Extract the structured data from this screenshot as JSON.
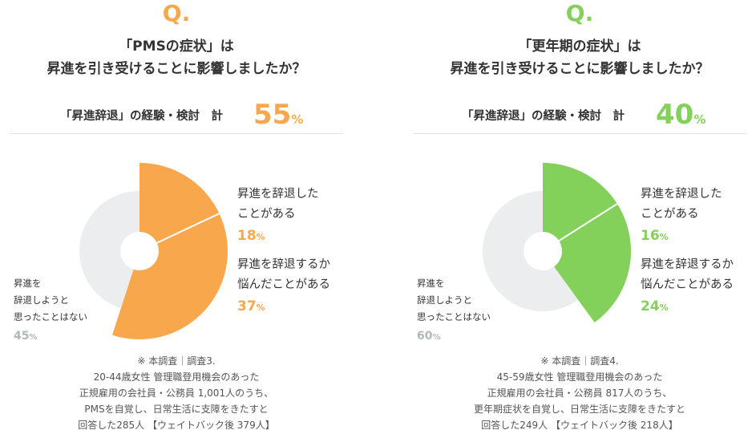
{
  "colors": {
    "pms": "#f9a74c",
    "meno": "#83d05a",
    "grey": "#ecedef",
    "grey_text": "#b0b8bd"
  },
  "panels": [
    {
      "q_mark": "Q.",
      "question_line1": "「PMSの症状」は",
      "question_line2": "昇進を引き受けることに影響しましたか？",
      "summary_label": "「昇進辞退」の経験・検討　計",
      "summary_value": "55",
      "summary_pct": "%",
      "label_a_line1": "昇進を辞退した",
      "label_a_line2": "ことがある",
      "label_a_value": "18",
      "label_b_line1": "昇進を辞退するか",
      "label_b_line2": "悩んだことがある",
      "label_b_value": "37",
      "label_c_line1": "昇進を",
      "label_c_line2": "辞退しようと",
      "label_c_line3": "思ったことはない",
      "label_c_value": "45",
      "pct": "%",
      "note_line1": "※ 本調査｜調査3.",
      "note_line2": "20-44歳女性 管理職登用機会のあった",
      "note_line3": "正規雇用の会社員・公務員 1,001人のうち、",
      "note_line4": "PMSを自覚し、日常生活に支障をきたすと",
      "note_line5": "回答した285人 【ウェイトバック後 379人】"
    },
    {
      "q_mark": "Q.",
      "question_line1": "「更年期の症状」は",
      "question_line2": "昇進を引き受けることに影響しましたか？",
      "summary_label": "「昇進辞退」の経験・検討　計",
      "summary_value": "40",
      "summary_pct": "%",
      "label_a_line1": "昇進を辞退した",
      "label_a_line2": "ことがある",
      "label_a_value": "16",
      "label_b_line1": "昇進を辞退するか",
      "label_b_line2": "悩んだことがある",
      "label_b_value": "24",
      "label_c_line1": "昇進を",
      "label_c_line2": "辞退しようと",
      "label_c_line3": "思ったことはない",
      "label_c_value": "60",
      "pct": "%",
      "note_line1": "※ 本調査｜調査4.",
      "note_line2": "45-59歳女性 管理職登用機会のあった",
      "note_line3": "正規雇用の会社員・公務員 817人のうち、",
      "note_line4": "更年期症状を自覚し、日常生活に支障をきたすと",
      "note_line5": "回答した249人 【ウェイトバック後 218人】"
    }
  ],
  "chart_data": [
    {
      "type": "pie",
      "title": "「PMSの症状」は昇進を引き受けることに影響しましたか？",
      "categories": [
        "昇進を辞退したことがある",
        "昇進を辞退するか悩んだことがある",
        "昇進を辞退しようと思ったことはない"
      ],
      "values": [
        18,
        37,
        45
      ],
      "unit": "%",
      "colors": [
        "#f9a74c",
        "#f9a74c",
        "#ecedef"
      ]
    },
    {
      "type": "pie",
      "title": "「更年期の症状」は昇進を引き受けることに影響しましたか？",
      "categories": [
        "昇進を辞退したことがある",
        "昇進を辞退するか悩んだことがある",
        "昇進を辞退しようと思ったことはない"
      ],
      "values": [
        16,
        24,
        60
      ],
      "unit": "%",
      "colors": [
        "#83d05a",
        "#83d05a",
        "#ecedef"
      ]
    }
  ]
}
